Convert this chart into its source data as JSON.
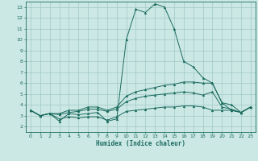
{
  "background_color": "#cce8e5",
  "grid_color": "#a0c8c5",
  "line_color": "#1a6b5e",
  "xlabel": "Humidex (Indice chaleur)",
  "xlim": [
    -0.5,
    23.5
  ],
  "ylim": [
    1.5,
    13.5
  ],
  "xticks": [
    0,
    1,
    2,
    3,
    4,
    5,
    6,
    7,
    8,
    9,
    10,
    11,
    12,
    13,
    14,
    15,
    16,
    17,
    18,
    19,
    20,
    21,
    22,
    23
  ],
  "yticks": [
    2,
    3,
    4,
    5,
    6,
    7,
    8,
    9,
    10,
    11,
    12,
    13
  ],
  "lines": [
    [
      0,
      3.5,
      1,
      3.0,
      2,
      3.2,
      3,
      2.5,
      4,
      3.2,
      5,
      3.1,
      6,
      3.2,
      7,
      3.3,
      8,
      2.5,
      9,
      2.7,
      10,
      10.0,
      11,
      12.8,
      12,
      12.5,
      13,
      13.3,
      14,
      13.0,
      15,
      11.0,
      16,
      8.0,
      17,
      7.5,
      18,
      6.5,
      19,
      6.0,
      20,
      4.2,
      21,
      3.5,
      22,
      3.3,
      23,
      3.8
    ],
    [
      0,
      3.5,
      1,
      3.0,
      2,
      3.2,
      3,
      3.2,
      4,
      3.5,
      5,
      3.5,
      6,
      3.8,
      7,
      3.8,
      8,
      3.5,
      9,
      3.8,
      10,
      4.8,
      11,
      5.2,
      12,
      5.4,
      13,
      5.6,
      14,
      5.8,
      15,
      5.9,
      16,
      6.1,
      17,
      6.1,
      18,
      6.0,
      19,
      6.0,
      20,
      4.2,
      21,
      4.0,
      22,
      3.3,
      23,
      3.8
    ],
    [
      0,
      3.5,
      1,
      3.0,
      2,
      3.2,
      3,
      3.1,
      4,
      3.3,
      5,
      3.4,
      6,
      3.6,
      7,
      3.6,
      8,
      3.4,
      9,
      3.6,
      10,
      4.3,
      11,
      4.6,
      12,
      4.8,
      13,
      4.9,
      14,
      5.0,
      15,
      5.1,
      16,
      5.2,
      17,
      5.1,
      18,
      4.9,
      19,
      5.2,
      20,
      3.8,
      21,
      3.6,
      22,
      3.3,
      23,
      3.8
    ],
    [
      0,
      3.5,
      1,
      3.0,
      2,
      3.2,
      3,
      2.7,
      4,
      2.9,
      5,
      2.8,
      6,
      2.9,
      7,
      2.9,
      8,
      2.6,
      9,
      2.9,
      10,
      3.4,
      11,
      3.5,
      12,
      3.6,
      13,
      3.7,
      14,
      3.8,
      15,
      3.8,
      16,
      3.9,
      17,
      3.9,
      18,
      3.8,
      19,
      3.5,
      20,
      3.5,
      21,
      3.5,
      22,
      3.3,
      23,
      3.8
    ]
  ]
}
